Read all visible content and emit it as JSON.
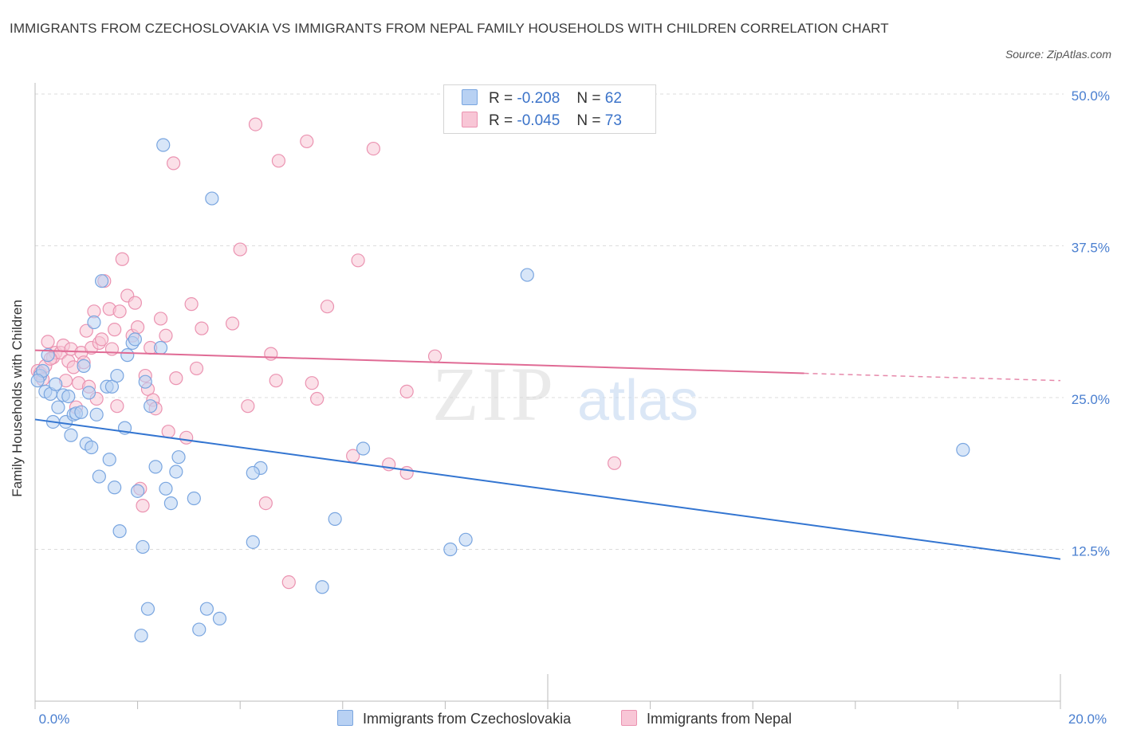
{
  "title": "IMMIGRANTS FROM CZECHOSLOVAKIA VS IMMIGRANTS FROM NEPAL FAMILY HOUSEHOLDS WITH CHILDREN CORRELATION CHART",
  "source": "Source: ZipAtlas.com",
  "colors": {
    "blue_fill": "#b8d1f3",
    "blue_stroke": "#7aa6e0",
    "blue_line": "#3375d1",
    "pink_fill": "#f8c6d6",
    "pink_stroke": "#eb93b1",
    "pink_line": "#e06b95",
    "tick_label": "#4a7fd0",
    "grid": "#dcdcdc"
  },
  "legend_top": [
    {
      "r_label": "R =",
      "r_value": "-0.208",
      "n_label": "N =",
      "n_value": "62",
      "color": "blue"
    },
    {
      "r_label": "R =",
      "r_value": "-0.045",
      "n_label": "N =",
      "n_value": "73",
      "color": "pink"
    }
  ],
  "watermark": {
    "zip": "ZIP",
    "atlas": "atlas"
  },
  "chart_data": {
    "type": "scatter",
    "title": "IMMIGRANTS FROM CZECHOSLOVAKIA VS IMMIGRANTS FROM NEPAL FAMILY HOUSEHOLDS WITH CHILDREN CORRELATION CHART",
    "xlabel": "",
    "ylabel": "Family Households with Children",
    "xlim": [
      0,
      20
    ],
    "ylim": [
      0,
      50
    ],
    "x_tick_labels": [
      "0.0%",
      "20.0%"
    ],
    "y_ticks": [
      12.5,
      25.0,
      37.5,
      50.0
    ],
    "y_tick_labels": [
      "12.5%",
      "25.0%",
      "37.5%",
      "50.0%"
    ],
    "grid": true,
    "legend_position": "bottom",
    "series": [
      {
        "name": "Immigrants from Czechoslovakia",
        "color": "blue",
        "trend": {
          "x": [
            0.0,
            20.0
          ],
          "y": [
            23.2,
            11.7
          ]
        },
        "points": [
          [
            0.1,
            26.8
          ],
          [
            0.15,
            27.2
          ],
          [
            0.2,
            25.5
          ],
          [
            0.25,
            28.5
          ],
          [
            0.3,
            25.3
          ],
          [
            0.35,
            23.0
          ],
          [
            0.4,
            26.1
          ],
          [
            0.45,
            24.2
          ],
          [
            0.55,
            25.2
          ],
          [
            0.6,
            23.0
          ],
          [
            0.65,
            25.1
          ],
          [
            0.7,
            21.9
          ],
          [
            0.75,
            23.6
          ],
          [
            0.8,
            23.7
          ],
          [
            0.9,
            23.8
          ],
          [
            0.95,
            27.6
          ],
          [
            1.0,
            21.2
          ],
          [
            1.05,
            25.4
          ],
          [
            1.1,
            20.9
          ],
          [
            1.15,
            31.2
          ],
          [
            1.2,
            23.6
          ],
          [
            1.25,
            18.5
          ],
          [
            1.3,
            34.6
          ],
          [
            1.4,
            25.9
          ],
          [
            1.45,
            19.9
          ],
          [
            1.5,
            25.9
          ],
          [
            1.55,
            17.6
          ],
          [
            1.6,
            26.8
          ],
          [
            1.65,
            14.0
          ],
          [
            1.75,
            22.5
          ],
          [
            1.8,
            28.5
          ],
          [
            1.9,
            29.5
          ],
          [
            1.95,
            29.8
          ],
          [
            2.0,
            17.3
          ],
          [
            2.1,
            12.7
          ],
          [
            2.15,
            26.3
          ],
          [
            2.2,
            7.6
          ],
          [
            2.25,
            24.3
          ],
          [
            2.35,
            19.3
          ],
          [
            2.45,
            29.1
          ],
          [
            2.5,
            45.8
          ],
          [
            2.55,
            17.5
          ],
          [
            2.65,
            16.3
          ],
          [
            2.75,
            18.9
          ],
          [
            2.8,
            20.1
          ],
          [
            3.1,
            16.7
          ],
          [
            3.2,
            5.9
          ],
          [
            3.35,
            7.6
          ],
          [
            3.45,
            41.4
          ],
          [
            3.6,
            6.8
          ],
          [
            2.07,
            5.4
          ],
          [
            4.25,
            13.1
          ],
          [
            4.4,
            19.2
          ],
          [
            4.25,
            18.8
          ],
          [
            5.6,
            9.4
          ],
          [
            5.85,
            15.0
          ],
          [
            6.4,
            20.8
          ],
          [
            8.1,
            12.5
          ],
          [
            8.4,
            13.3
          ],
          [
            9.6,
            35.1
          ],
          [
            18.1,
            20.7
          ],
          [
            0.05,
            26.4
          ]
        ]
      },
      {
        "name": "Immigrants from Nepal",
        "color": "pink",
        "trend": {
          "x": [
            0.0,
            15.0
          ],
          "y": [
            28.9,
            27.0
          ]
        },
        "trend_extension": {
          "x": [
            15.0,
            20.0
          ],
          "y": [
            27.0,
            26.4
          ]
        },
        "points": [
          [
            0.05,
            27.2
          ],
          [
            0.1,
            27.0
          ],
          [
            0.15,
            26.5
          ],
          [
            0.2,
            27.6
          ],
          [
            0.25,
            29.6
          ],
          [
            0.35,
            28.3
          ],
          [
            0.4,
            28.7
          ],
          [
            0.5,
            28.7
          ],
          [
            0.55,
            29.3
          ],
          [
            0.65,
            28.0
          ],
          [
            0.7,
            29.0
          ],
          [
            0.75,
            27.5
          ],
          [
            0.8,
            24.2
          ],
          [
            0.85,
            26.2
          ],
          [
            0.9,
            28.7
          ],
          [
            0.95,
            27.9
          ],
          [
            1.0,
            30.5
          ],
          [
            1.05,
            25.9
          ],
          [
            1.1,
            29.1
          ],
          [
            1.15,
            32.1
          ],
          [
            1.2,
            24.9
          ],
          [
            1.25,
            29.5
          ],
          [
            1.3,
            29.8
          ],
          [
            1.35,
            34.6
          ],
          [
            1.45,
            32.3
          ],
          [
            1.5,
            29.0
          ],
          [
            1.55,
            30.6
          ],
          [
            1.6,
            24.3
          ],
          [
            1.65,
            32.1
          ],
          [
            1.7,
            36.4
          ],
          [
            1.8,
            33.4
          ],
          [
            1.9,
            30.1
          ],
          [
            1.95,
            32.8
          ],
          [
            2.0,
            30.8
          ],
          [
            2.05,
            17.5
          ],
          [
            2.1,
            16.1
          ],
          [
            2.15,
            26.8
          ],
          [
            2.2,
            25.7
          ],
          [
            2.25,
            29.1
          ],
          [
            2.3,
            24.8
          ],
          [
            2.35,
            24.1
          ],
          [
            2.45,
            31.5
          ],
          [
            2.55,
            30.1
          ],
          [
            2.6,
            22.2
          ],
          [
            2.7,
            44.3
          ],
          [
            2.75,
            26.6
          ],
          [
            2.95,
            21.7
          ],
          [
            3.05,
            32.7
          ],
          [
            3.15,
            27.4
          ],
          [
            3.25,
            30.7
          ],
          [
            3.85,
            31.1
          ],
          [
            4.0,
            37.2
          ],
          [
            4.15,
            24.3
          ],
          [
            4.3,
            47.5
          ],
          [
            4.5,
            16.3
          ],
          [
            4.6,
            28.6
          ],
          [
            4.7,
            26.4
          ],
          [
            4.75,
            44.5
          ],
          [
            4.95,
            9.8
          ],
          [
            5.3,
            46.1
          ],
          [
            5.4,
            26.2
          ],
          [
            5.5,
            24.9
          ],
          [
            5.7,
            32.5
          ],
          [
            6.2,
            20.2
          ],
          [
            6.3,
            36.3
          ],
          [
            6.6,
            45.5
          ],
          [
            6.9,
            19.5
          ],
          [
            7.25,
            18.8
          ],
          [
            7.25,
            25.5
          ],
          [
            7.8,
            28.4
          ],
          [
            11.3,
            19.6
          ],
          [
            0.3,
            28.2
          ],
          [
            0.6,
            26.4
          ]
        ]
      }
    ]
  }
}
